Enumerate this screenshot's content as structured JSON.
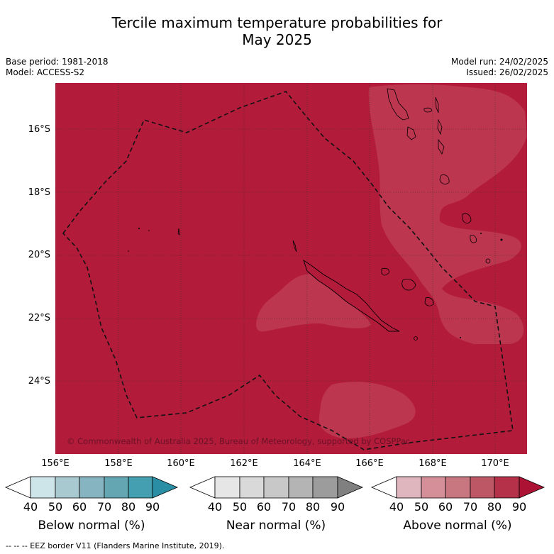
{
  "title": {
    "line1": "Tercile maximum temperature probabilities for",
    "line2": "May 2025"
  },
  "meta_left": {
    "base_period": "Base period: 1981-2018",
    "model": "Model: ACCESS-S2"
  },
  "meta_right": {
    "model_run": "Model run: 24/02/2025",
    "issued": "Issued: 26/02/2025"
  },
  "map": {
    "lat_labels": [
      "16°S",
      "18°S",
      "20°S",
      "22°S",
      "24°S"
    ],
    "lon_labels": [
      "156°E",
      "158°E",
      "160°E",
      "162°E",
      "164°E",
      "166°E",
      "168°E",
      "170°E"
    ],
    "copyright": "© Commonwealth of Australia 2025, Bureau of Meteorology, supported by COSPPac",
    "colors": {
      "above_80_90": "#b31b3b",
      "above_70_80": "#bd3650"
    }
  },
  "colorbars": [
    {
      "label": "Below normal (%)",
      "ticks": [
        "40",
        "50",
        "60",
        "70",
        "80",
        "90"
      ],
      "colors": [
        "#ffffff",
        "#cde4e9",
        "#a9c9d0",
        "#86b4c0",
        "#65a6b3",
        "#44a0b0",
        "#2a8fa4"
      ]
    },
    {
      "label": "Near normal (%)",
      "ticks": [
        "40",
        "50",
        "60",
        "70",
        "80",
        "90"
      ],
      "colors": [
        "#ffffff",
        "#e6e6e6",
        "#d9d9d9",
        "#c8c8c8",
        "#b4b4b4",
        "#9c9c9c",
        "#808080"
      ]
    },
    {
      "label": "Above normal (%)",
      "ticks": [
        "40",
        "50",
        "60",
        "70",
        "80",
        "90"
      ],
      "colors": [
        "#ffffff",
        "#dfb6be",
        "#d58f99",
        "#c87780",
        "#bd5766",
        "#b53149",
        "#ab1233"
      ]
    }
  ],
  "footer": "--  --  -- EEZ border V11 (Flanders Marine Institute, 2019)."
}
